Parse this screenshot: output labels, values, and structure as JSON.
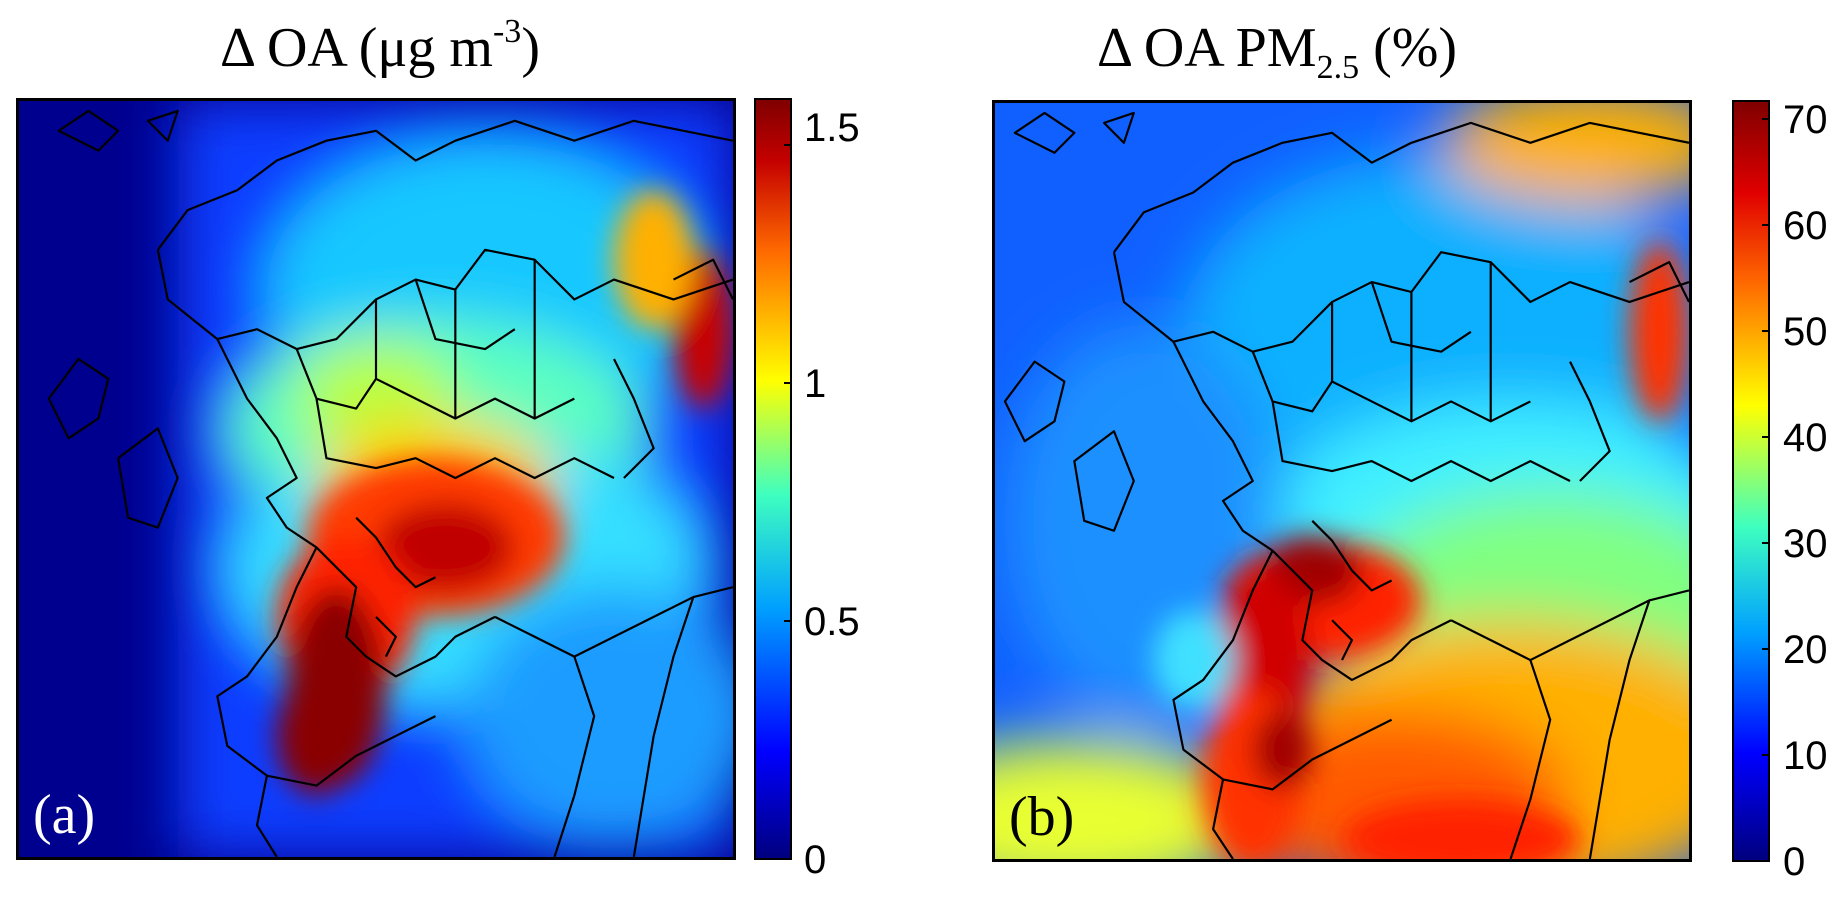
{
  "panels": [
    {
      "title_main": "Δ OA (μg m",
      "title_sup": "-3",
      "title_end": ")",
      "label": "(a)",
      "colorbar": {
        "min": 0,
        "max": 1.6,
        "ticks": [
          "0",
          "0.5",
          "1",
          "1.5"
        ],
        "tick_values": [
          0,
          0.5,
          1,
          1.5
        ]
      }
    },
    {
      "title_main": "Δ OA PM",
      "title_sub": "2.5",
      "title_end": " (%)",
      "label": "(b)",
      "colorbar": {
        "min": 0,
        "max": 70,
        "ticks": [
          "0",
          "10",
          "20",
          "30",
          "40",
          "50",
          "60",
          "70"
        ],
        "tick_values": [
          0,
          10,
          20,
          30,
          40,
          50,
          60,
          70
        ]
      }
    }
  ],
  "colors": {
    "darkblue": "#00007f",
    "blue": "#0000ff",
    "cyan": "#00ffff",
    "yellow": "#ffff00",
    "red": "#ff0000",
    "darkred": "#800000"
  }
}
